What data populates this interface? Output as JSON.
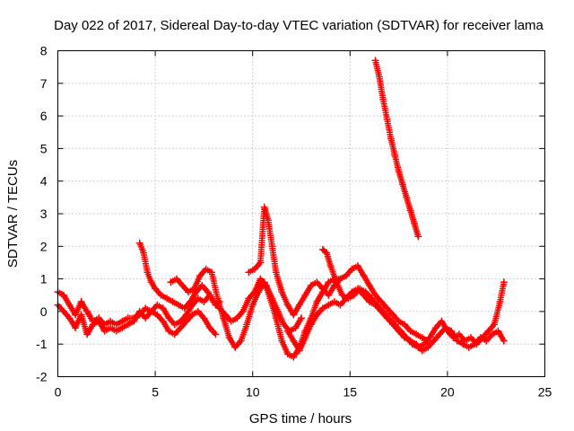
{
  "chart_data": {
    "type": "scatter",
    "title": "Day 022 of 2017, Sidereal Day-to-day VTEC variation (SDTVAR) for receiver lama",
    "xlabel": "GPS time / hours",
    "ylabel": "SDTVAR / TECUs",
    "xlim": [
      0,
      25
    ],
    "ylim": [
      -2,
      8
    ],
    "xticks": [
      "0",
      "5",
      "10",
      "15",
      "20",
      "25"
    ],
    "yticks": [
      "-2",
      "-1",
      "0",
      "1",
      "2",
      "3",
      "4",
      "5",
      "6",
      "7",
      "8"
    ],
    "grid": true,
    "marker": "plus",
    "color": "#ff0000",
    "series": [
      {
        "x": [
          0.0,
          0.3,
          0.6,
          0.9,
          1.2,
          1.5,
          1.8,
          2.1,
          2.4,
          2.7,
          3.0,
          3.3,
          3.6,
          3.9,
          4.2,
          4.5,
          4.8,
          5.1,
          5.4,
          5.7,
          6.0,
          6.3,
          6.6,
          6.9,
          7.2,
          7.5,
          7.8,
          8.1,
          8.3
        ],
        "y": [
          0.6,
          0.5,
          0.2,
          -0.1,
          0.3,
          0.0,
          -0.3,
          -0.2,
          -0.4,
          -0.3,
          -0.4,
          -0.3,
          -0.2,
          -0.2,
          -0.1,
          0.1,
          0.0,
          0.2,
          0.1,
          -0.2,
          -0.4,
          -0.3,
          -0.1,
          0.2,
          0.4,
          0.3,
          0.5,
          0.2,
          0.3
        ]
      },
      {
        "x": [
          0.0,
          0.3,
          0.6,
          0.9,
          1.2,
          1.5,
          1.8,
          2.1,
          2.4,
          2.7,
          3.0,
          3.3,
          3.6,
          3.9,
          4.2,
          4.5,
          4.8,
          5.1,
          5.4,
          5.7,
          6.0,
          6.3,
          6.6,
          6.9,
          7.2,
          7.5,
          7.8,
          8.1
        ],
        "y": [
          0.2,
          0.0,
          -0.2,
          -0.5,
          -0.1,
          -0.7,
          -0.4,
          -0.3,
          -0.6,
          -0.5,
          -0.6,
          -0.5,
          -0.4,
          -0.3,
          0.0,
          -0.2,
          0.0,
          -0.1,
          -0.3,
          -0.6,
          -0.7,
          -0.5,
          -0.3,
          -0.1,
          0.0,
          -0.2,
          -0.5,
          -0.7
        ]
      },
      {
        "x": [
          4.2,
          4.4,
          4.6,
          4.8,
          5.0,
          5.3,
          5.6,
          5.9,
          6.2,
          6.5,
          6.8,
          7.1,
          7.4,
          7.7,
          8.0,
          8.3,
          8.6,
          8.9,
          9.2,
          9.5,
          9.8,
          10.1,
          10.4,
          10.7,
          11.0,
          11.3,
          11.6,
          11.9,
          12.2,
          12.5
        ],
        "y": [
          2.1,
          1.8,
          1.2,
          0.9,
          0.7,
          0.5,
          0.4,
          0.3,
          0.2,
          0.1,
          0.3,
          0.6,
          0.8,
          0.6,
          0.3,
          0.1,
          -0.1,
          -0.3,
          -0.2,
          0.0,
          0.4,
          0.6,
          1.0,
          0.8,
          0.4,
          0.0,
          -0.4,
          -0.6,
          -0.5,
          -0.2
        ]
      },
      {
        "x": [
          5.8,
          6.1,
          6.4,
          6.7,
          7.0,
          7.3,
          7.6,
          7.9,
          8.2,
          8.5,
          8.8,
          9.1,
          9.4,
          9.7,
          10.0,
          10.3,
          10.6,
          10.9,
          11.2,
          11.5,
          11.8,
          12.1,
          12.4,
          12.7,
          13.0,
          13.3,
          13.6,
          13.9,
          14.2,
          14.5
        ],
        "y": [
          0.9,
          1.0,
          0.8,
          0.6,
          0.7,
          1.1,
          1.3,
          1.2,
          0.4,
          -0.2,
          -0.8,
          -1.1,
          -0.9,
          -0.4,
          0.2,
          0.6,
          0.9,
          0.4,
          -0.2,
          -0.9,
          -1.3,
          -1.4,
          -1.1,
          -0.6,
          -0.2,
          0.3,
          0.6,
          0.9,
          1.0,
          1.0
        ]
      },
      {
        "x": [
          9.8,
          10.1,
          10.4,
          10.6,
          10.8,
          11.0,
          11.2,
          11.5,
          11.8,
          12.1,
          12.4,
          12.7,
          13.0,
          13.3,
          13.6,
          13.9,
          14.2,
          14.5,
          14.8,
          15.1,
          15.4,
          15.7,
          16.0,
          16.3,
          16.6,
          16.9,
          17.2,
          17.5,
          17.8,
          18.1,
          18.4,
          18.7,
          19.0
        ],
        "y": [
          1.2,
          1.3,
          1.5,
          3.2,
          2.8,
          2.0,
          1.2,
          0.6,
          0.2,
          -0.1,
          0.2,
          0.5,
          0.8,
          0.9,
          0.7,
          0.5,
          0.8,
          1.0,
          1.1,
          1.3,
          1.4,
          1.1,
          0.8,
          0.5,
          0.3,
          0.1,
          -0.1,
          -0.3,
          -0.4,
          -0.6,
          -0.7,
          -0.8,
          -0.9
        ]
      },
      {
        "x": [
          13.6,
          13.8,
          14.0,
          14.3,
          14.6,
          14.9,
          15.2,
          15.5,
          15.8,
          16.1,
          16.4,
          16.7,
          17.0,
          17.3,
          17.6,
          17.9,
          18.2,
          18.5,
          18.8,
          19.1,
          19.4,
          19.7,
          20.0,
          20.3,
          20.6,
          20.9,
          21.2,
          21.5,
          21.8,
          22.1,
          22.4,
          22.7,
          22.9
        ],
        "y": [
          1.9,
          1.8,
          1.4,
          0.9,
          0.5,
          0.4,
          0.5,
          0.7,
          0.6,
          0.4,
          0.2,
          0.0,
          -0.2,
          -0.4,
          -0.6,
          -0.8,
          -1.0,
          -1.1,
          -1.0,
          -0.8,
          -0.5,
          -0.3,
          -0.6,
          -0.8,
          -0.7,
          -0.9,
          -0.8,
          -1.0,
          -0.8,
          -0.6,
          -0.4,
          0.3,
          0.9
        ]
      },
      {
        "x": [
          11.8,
          12.1,
          12.4,
          12.7,
          13.0,
          13.3,
          13.6,
          13.9,
          14.2,
          14.5,
          14.8,
          15.1,
          15.4,
          15.7,
          16.0,
          16.3,
          16.6,
          16.9,
          17.2,
          17.5,
          17.8,
          18.1,
          18.4,
          18.7,
          19.0,
          19.3,
          19.6,
          19.9,
          20.2,
          20.5,
          20.8,
          21.1,
          21.4,
          21.7,
          22.0,
          22.3,
          22.6,
          22.9
        ],
        "y": [
          -0.6,
          -0.9,
          -1.2,
          -0.8,
          -0.4,
          -0.1,
          0.1,
          0.2,
          0.3,
          0.2,
          0.4,
          0.6,
          0.7,
          0.5,
          0.3,
          0.2,
          0.0,
          -0.2,
          -0.4,
          -0.6,
          -0.8,
          -0.9,
          -1.0,
          -1.2,
          -1.1,
          -0.9,
          -0.7,
          -0.5,
          -0.6,
          -0.9,
          -1.0,
          -1.1,
          -1.0,
          -0.8,
          -0.9,
          -0.7,
          -0.6,
          -0.9
        ]
      },
      {
        "x": [
          16.3,
          16.5,
          16.7,
          16.9,
          17.1,
          17.3,
          17.5,
          17.7,
          17.9,
          18.1,
          18.3,
          18.5
        ],
        "y": [
          7.7,
          7.2,
          6.5,
          5.9,
          5.3,
          4.8,
          4.3,
          3.9,
          3.5,
          3.1,
          2.7,
          2.3
        ]
      }
    ]
  }
}
